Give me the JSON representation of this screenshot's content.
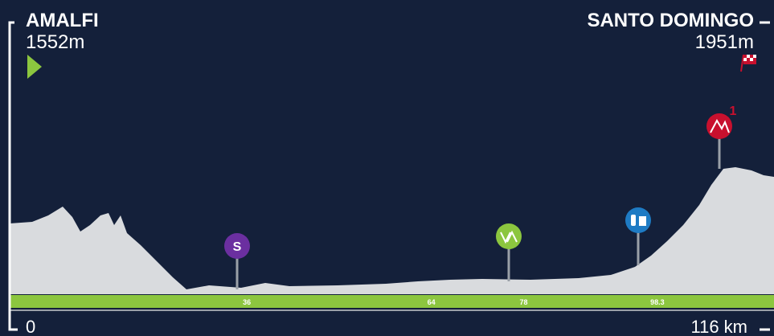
{
  "start": {
    "name": "AMALFI",
    "elevation": "1552m"
  },
  "finish": {
    "name": "SANTO DOMINGO",
    "elevation": "1951m"
  },
  "distance": {
    "start": 0,
    "end": {
      "value": 116,
      "label": "116 km"
    }
  },
  "markers": [
    36,
    64,
    78,
    98.3
  ],
  "climb_category": "1"
}
